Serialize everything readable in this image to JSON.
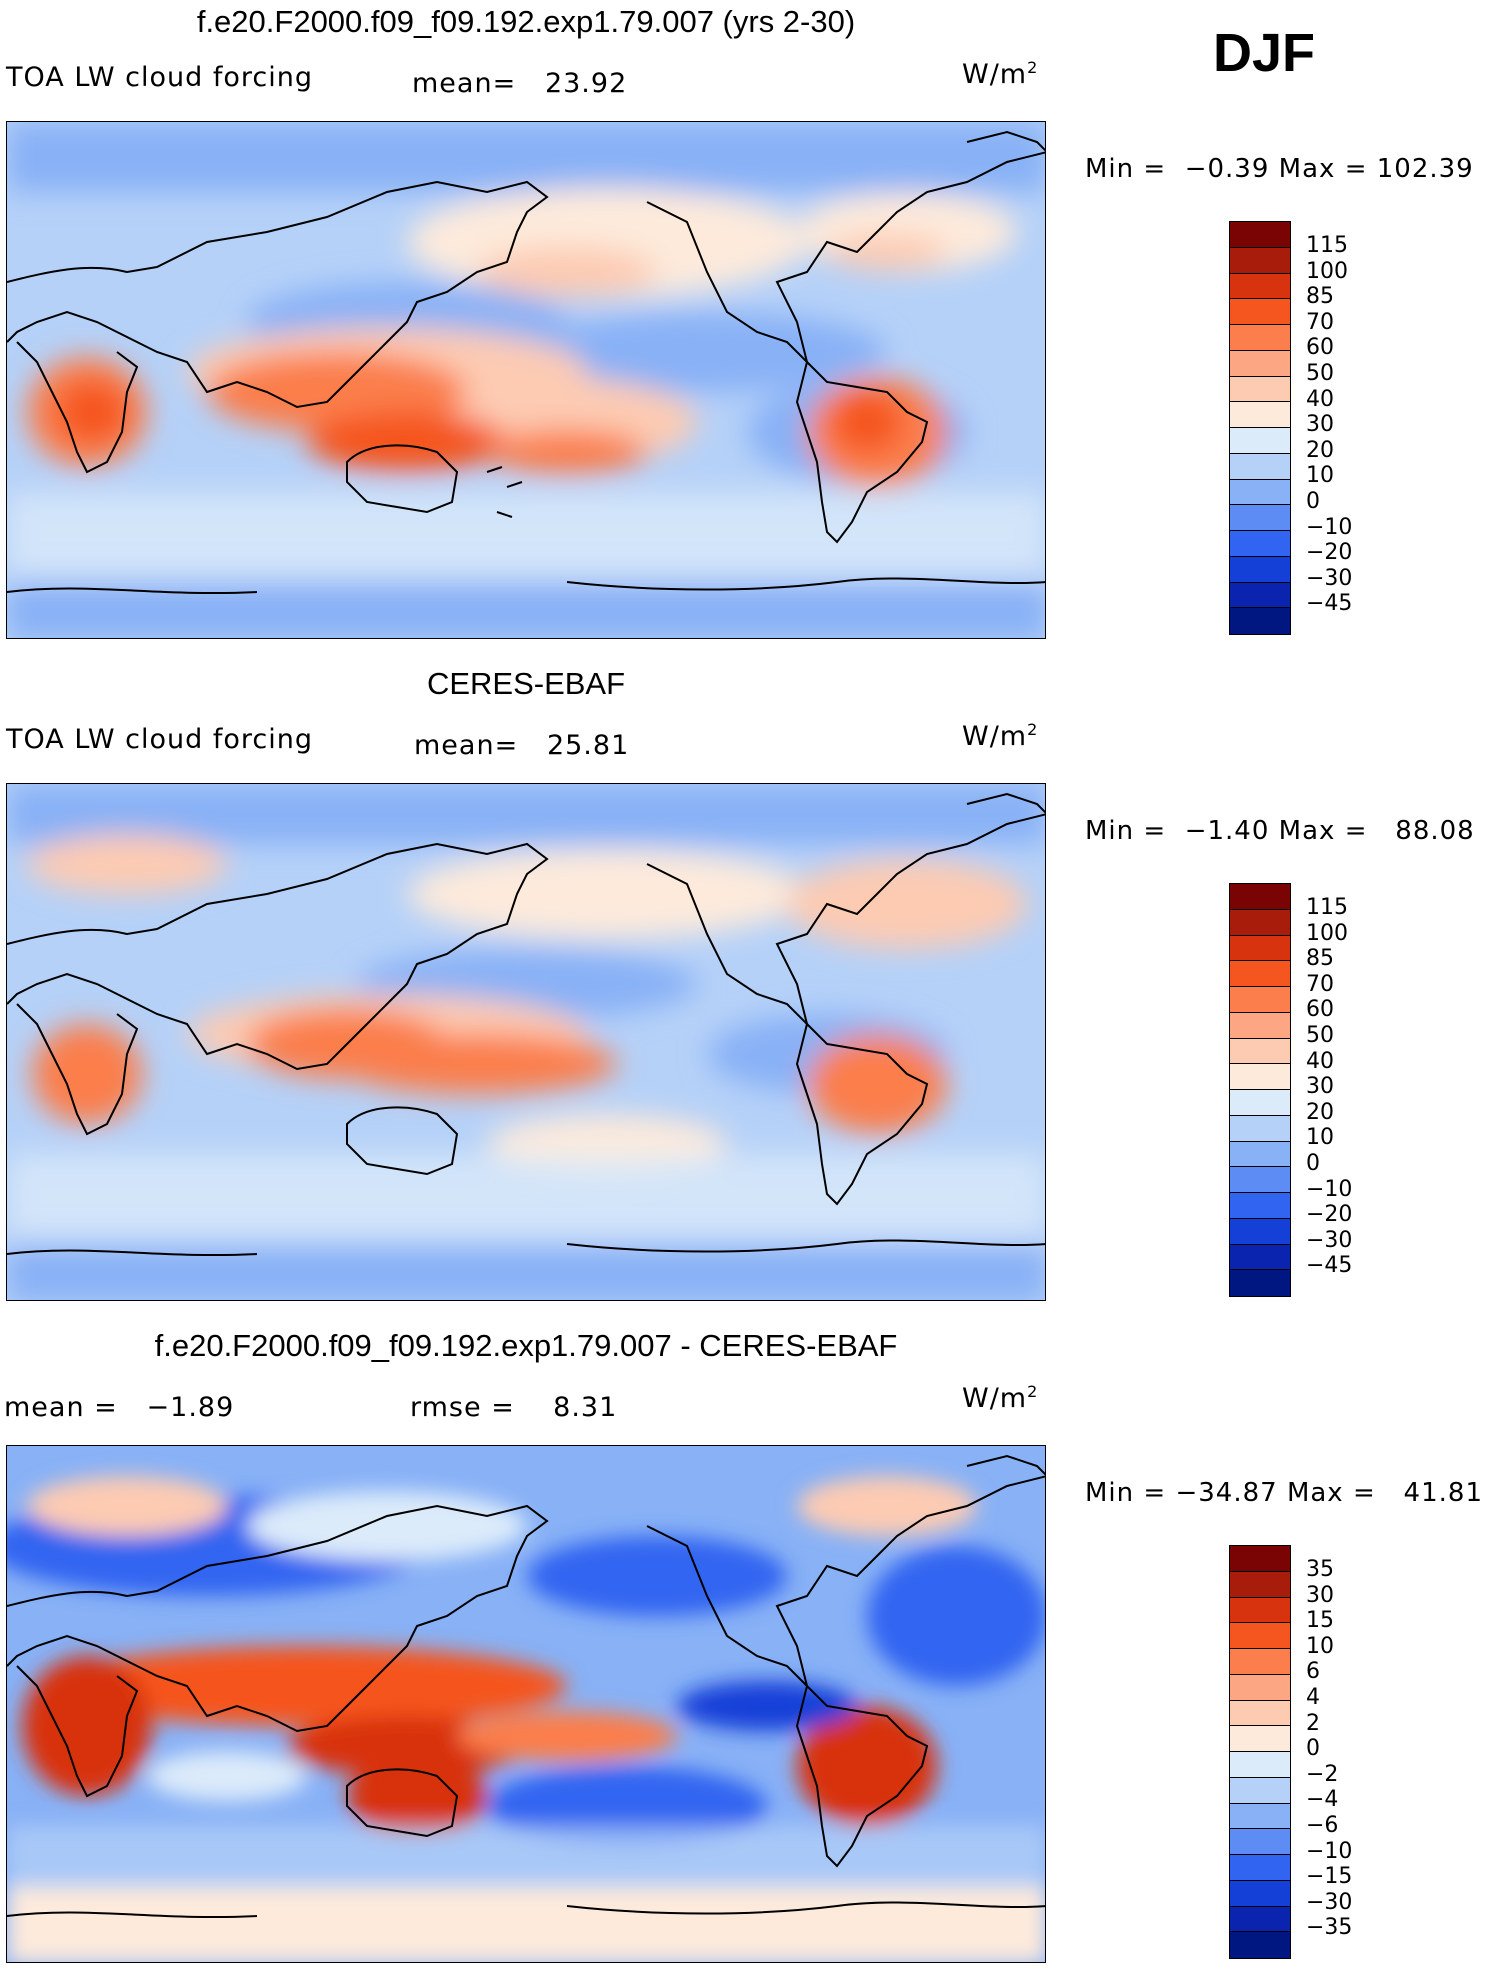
{
  "season": "DJF",
  "panels": [
    {
      "title": "f.e20.F2000.f09_f09.192.exp1.79.007 (yrs 2-30)",
      "left_label": "TOA LW cloud forcing",
      "stat1_label": "mean=",
      "stat1_value": "23.92",
      "stat2_label": "",
      "stat2_value": "",
      "units": "W/m",
      "units_sup": "2",
      "min_label": "Min =",
      "min_value": "−0.39",
      "max_label": "Max =",
      "max_value": "102.39",
      "colorbar_labels": [
        "115",
        "100",
        "85",
        "70",
        "60",
        "50",
        "40",
        "30",
        "20",
        "10",
        "0",
        "−10",
        "−20",
        "−30",
        "−45"
      ],
      "colorbar_colors": [
        "#7a0403",
        "#a81c0b",
        "#d8330f",
        "#f5551e",
        "#fb7e4c",
        "#fca683",
        "#fdcbb2",
        "#fdeadb",
        "#dcebfa",
        "#b5d1f8",
        "#88b1f6",
        "#5d8cf4",
        "#3165f1",
        "#1540d8",
        "#0a24b0",
        "#001782"
      ]
    },
    {
      "title": "CERES-EBAF",
      "left_label": "TOA LW cloud forcing",
      "stat1_label": "mean=",
      "stat1_value": "25.81",
      "stat2_label": "",
      "stat2_value": "",
      "units": "W/m",
      "units_sup": "2",
      "min_label": "Min =",
      "min_value": "−1.40",
      "max_label": "Max =",
      "max_value": "88.08",
      "colorbar_labels": [
        "115",
        "100",
        "85",
        "70",
        "60",
        "50",
        "40",
        "30",
        "20",
        "10",
        "0",
        "−10",
        "−20",
        "−30",
        "−45"
      ],
      "colorbar_colors": [
        "#7a0403",
        "#a81c0b",
        "#d8330f",
        "#f5551e",
        "#fb7e4c",
        "#fca683",
        "#fdcbb2",
        "#fdeadb",
        "#dcebfa",
        "#b5d1f8",
        "#88b1f6",
        "#5d8cf4",
        "#3165f1",
        "#1540d8",
        "#0a24b0",
        "#001782"
      ]
    },
    {
      "title": "f.e20.F2000.f09_f09.192.exp1.79.007 - CERES-EBAF",
      "left_label": "",
      "stat1_label": "mean =",
      "stat1_value": "−1.89",
      "stat2_label": "rmse =",
      "stat2_value": "8.31",
      "units": "W/m",
      "units_sup": "2",
      "min_label": "Min =",
      "min_value": "−34.87",
      "max_label": "Max =",
      "max_value": "41.81",
      "colorbar_labels": [
        "35",
        "30",
        "15",
        "10",
        "6",
        "4",
        "2",
        "0",
        "−2",
        "−4",
        "−6",
        "−10",
        "−15",
        "−30",
        "−35"
      ],
      "colorbar_colors": [
        "#7a0403",
        "#a81c0b",
        "#d8330f",
        "#f5551e",
        "#fb7e4c",
        "#fca683",
        "#fdcbb2",
        "#fdeadb",
        "#dcebfa",
        "#b5d1f8",
        "#88b1f6",
        "#5d8cf4",
        "#3165f1",
        "#1540d8",
        "#0a24b0",
        "#001782"
      ]
    }
  ]
}
